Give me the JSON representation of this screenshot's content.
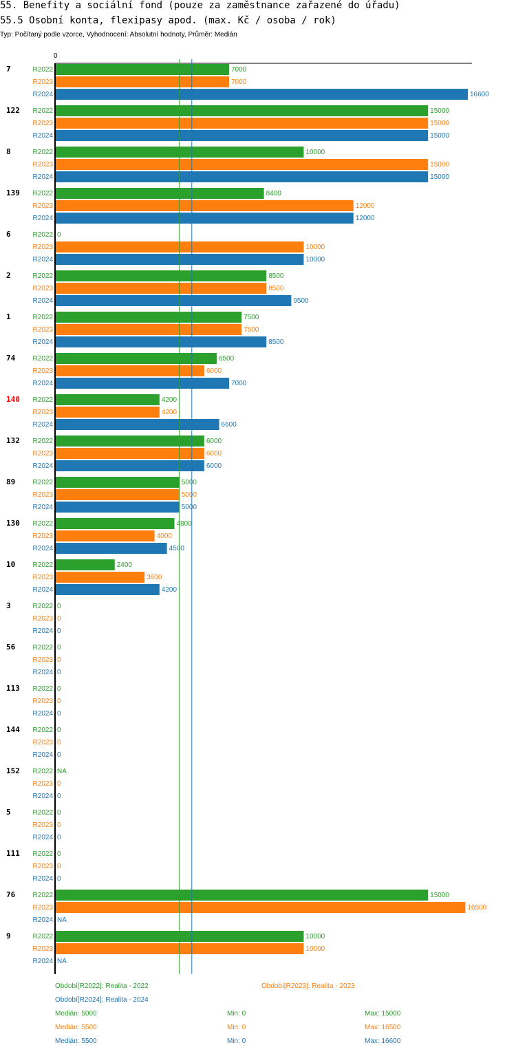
{
  "header": {
    "title": "55. Benefity a sociální fond (pouze za zaměstnance zařazené do úřadu)",
    "subtitle": "55.5 Osobní konta, flexipasy apod. (max. Kč / osoba / rok)",
    "info": "Typ: Počítaný podle vzorce, Vyhodnocení: Absolutní hodnoty, Průměr: Medián"
  },
  "colors": {
    "R2022": "#2ca02c",
    "R2023": "#ff7f0e",
    "R2024": "#1f77b4",
    "highlight": "#ff0000"
  },
  "chart_data": {
    "type": "bar",
    "orientation": "horizontal",
    "xlim": [
      0,
      16600
    ],
    "axis_zero_label": "0",
    "series_names": [
      "R2022",
      "R2023",
      "R2024"
    ],
    "groups": [
      {
        "id": "7",
        "highlight": false,
        "values": [
          7000,
          7000,
          16600
        ]
      },
      {
        "id": "122",
        "highlight": false,
        "values": [
          15000,
          15000,
          15000
        ]
      },
      {
        "id": "8",
        "highlight": false,
        "values": [
          10000,
          15000,
          15000
        ]
      },
      {
        "id": "139",
        "highlight": false,
        "values": [
          8400,
          12000,
          12000
        ]
      },
      {
        "id": "6",
        "highlight": false,
        "values": [
          0,
          10000,
          10000
        ]
      },
      {
        "id": "2",
        "highlight": false,
        "values": [
          8500,
          8500,
          9500
        ]
      },
      {
        "id": "1",
        "highlight": false,
        "values": [
          7500,
          7500,
          8500
        ]
      },
      {
        "id": "74",
        "highlight": false,
        "values": [
          6500,
          6000,
          7000
        ]
      },
      {
        "id": "140",
        "highlight": true,
        "values": [
          4200,
          4200,
          6600
        ]
      },
      {
        "id": "132",
        "highlight": false,
        "values": [
          6000,
          6000,
          6000
        ]
      },
      {
        "id": "89",
        "highlight": false,
        "values": [
          5000,
          5000,
          5000
        ]
      },
      {
        "id": "130",
        "highlight": false,
        "values": [
          4800,
          4000,
          4500
        ]
      },
      {
        "id": "10",
        "highlight": false,
        "values": [
          2400,
          3600,
          4200
        ]
      },
      {
        "id": "3",
        "highlight": false,
        "values": [
          0,
          0,
          0
        ]
      },
      {
        "id": "56",
        "highlight": false,
        "values": [
          0,
          0,
          0
        ]
      },
      {
        "id": "113",
        "highlight": false,
        "values": [
          0,
          0,
          0
        ]
      },
      {
        "id": "144",
        "highlight": false,
        "values": [
          0,
          0,
          0
        ]
      },
      {
        "id": "152",
        "highlight": false,
        "values": [
          "NA",
          0,
          0
        ]
      },
      {
        "id": "5",
        "highlight": false,
        "values": [
          0,
          0,
          0
        ]
      },
      {
        "id": "111",
        "highlight": false,
        "values": [
          0,
          0,
          0
        ]
      },
      {
        "id": "76",
        "highlight": false,
        "values": [
          15000,
          16500,
          "NA"
        ]
      },
      {
        "id": "9",
        "highlight": false,
        "values": [
          10000,
          10000,
          "NA"
        ]
      }
    ],
    "reference_lines": [
      {
        "series": "R2022",
        "value": 5000
      },
      {
        "series": "R2024",
        "value": 5500
      }
    ]
  },
  "legend": {
    "period_r2022": "Období[R2022]: Realita - 2022",
    "period_r2023": "Období[R2023]: Realita - 2023",
    "period_r2024": "Období[R2024]: Realita - 2024",
    "stats": [
      {
        "series": "R2022",
        "median": "Medián: 5000",
        "min": "Min: 0",
        "max": "Max: 15000"
      },
      {
        "series": "R2023",
        "median": "Medián: 5500",
        "min": "Min: 0",
        "max": "Max: 16500"
      },
      {
        "series": "R2024",
        "median": "Medián: 5500",
        "min": "Min: 0",
        "max": "Max: 16600"
      }
    ]
  }
}
